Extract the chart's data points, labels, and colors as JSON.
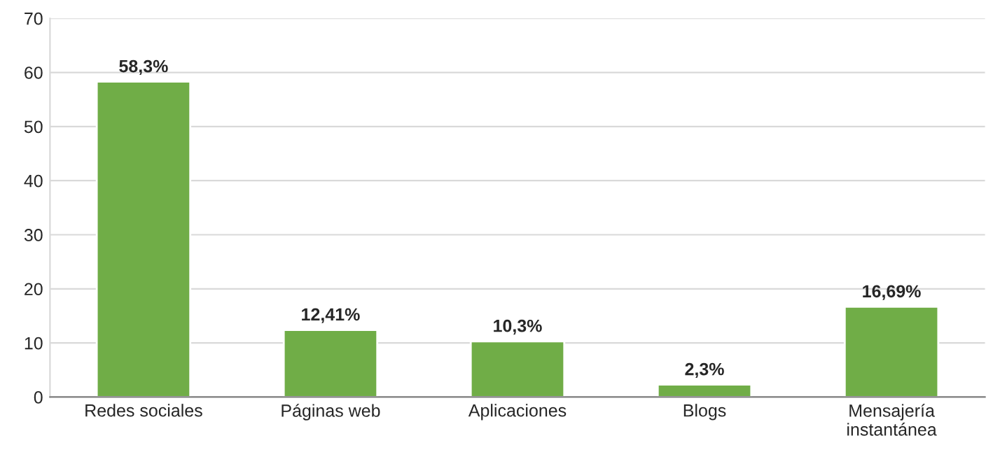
{
  "chart_data": {
    "type": "bar",
    "categories": [
      "Redes sociales",
      "Páginas web",
      "Aplicaciones",
      "Blogs",
      "Mensajería\ninstantánea"
    ],
    "values": [
      58.3,
      12.41,
      10.3,
      2.3,
      16.69
    ],
    "value_labels": [
      "58,3%",
      "12,41%",
      "10,3%",
      "2,3%",
      "16,69%"
    ],
    "color": "#70ad47",
    "ylim": [
      0,
      70
    ],
    "yticks": [
      0,
      10,
      20,
      30,
      40,
      50,
      60,
      70
    ],
    "grid": "y",
    "legend": false
  }
}
